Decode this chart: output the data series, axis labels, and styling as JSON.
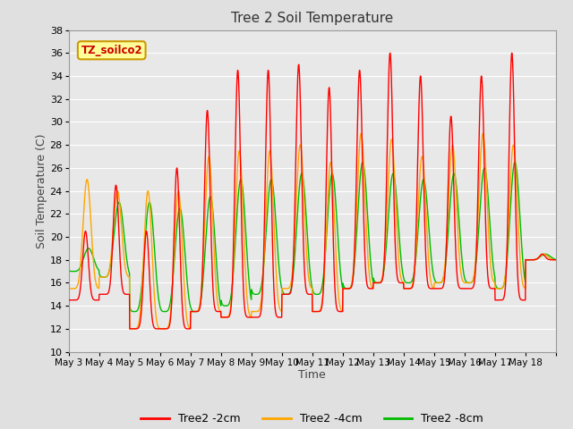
{
  "title": "Tree 2 Soil Temperature",
  "xlabel": "Time",
  "ylabel": "Soil Temperature (C)",
  "ylim": [
    10,
    38
  ],
  "yticks": [
    10,
    12,
    14,
    16,
    18,
    20,
    22,
    24,
    26,
    28,
    30,
    32,
    34,
    36,
    38
  ],
  "series_colors": [
    "#ff0000",
    "#ffa500",
    "#00bb00"
  ],
  "series_labels": [
    "Tree2 -2cm",
    "Tree2 -4cm",
    "Tree2 -8cm"
  ],
  "line_width": 1.0,
  "background_color": "#e0e0e0",
  "plot_bg_color": "#e8e8e8",
  "grid_color": "#ffffff",
  "legend_box_color": "#ffff99",
  "legend_box_edge": "#cc9900",
  "annotation_text": "TZ_soilco2",
  "annotation_color": "#cc0000",
  "tick_labels": [
    "May 3",
    "May 4",
    "May 5",
    "May 6",
    "May 7",
    "May 8",
    "May 9",
    "May 10",
    "May 11",
    "May 12",
    "May 13",
    "May 14",
    "May 15",
    "May 16",
    "May 17",
    "May 18"
  ],
  "daily_peaks_2cm": [
    20.5,
    24.5,
    20.5,
    26.0,
    31.0,
    34.5,
    34.5,
    35.0,
    33.0,
    34.5,
    36.0,
    34.0,
    30.5,
    34.0,
    36.0,
    18.5
  ],
  "daily_mins_2cm": [
    14.5,
    15.0,
    12.0,
    12.0,
    13.5,
    13.0,
    13.0,
    15.0,
    13.5,
    15.5,
    16.0,
    15.5,
    15.5,
    15.5,
    14.5,
    18.0
  ],
  "daily_peaks_4cm": [
    25.0,
    24.0,
    24.0,
    24.0,
    27.0,
    27.5,
    27.5,
    28.0,
    26.5,
    29.0,
    28.5,
    27.0,
    28.0,
    29.0,
    28.0,
    18.5
  ],
  "daily_mins_4cm": [
    15.5,
    16.5,
    12.0,
    12.0,
    13.5,
    13.0,
    13.5,
    15.5,
    13.5,
    15.5,
    16.0,
    15.5,
    16.0,
    16.0,
    15.5,
    18.0
  ],
  "daily_peaks_8cm": [
    19.0,
    23.0,
    23.0,
    22.5,
    23.5,
    25.0,
    25.0,
    25.5,
    25.5,
    26.5,
    25.5,
    25.0,
    25.5,
    26.0,
    26.5,
    18.5
  ],
  "daily_mins_8cm": [
    17.0,
    16.5,
    13.5,
    13.5,
    13.5,
    14.0,
    15.0,
    15.0,
    15.0,
    15.5,
    16.0,
    16.0,
    16.0,
    16.0,
    15.5,
    18.0
  ],
  "peak_sharpness_2cm": 6,
  "peak_sharpness_4cm": 3,
  "peak_sharpness_8cm": 2,
  "peak_time_2cm": 0.55,
  "peak_time_4cm": 0.6,
  "peak_time_8cm": 0.65
}
